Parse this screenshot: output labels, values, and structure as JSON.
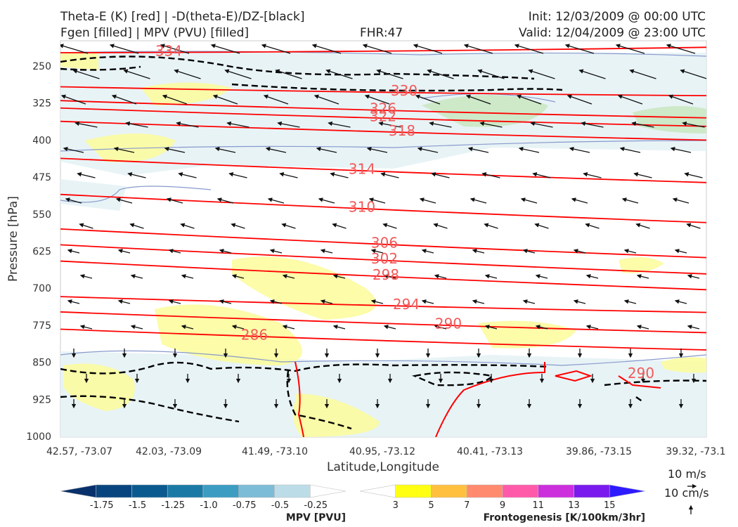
{
  "header": {
    "title_line1": "Theta-E (K) [red] | -D(theta-E)/DZ-[black]",
    "title_line2": "Fgen [filled] | MPV (PVU) [filled]",
    "fhr": "FHR:47",
    "init": "Init: 12/03/2009 @ 00:00 UTC",
    "valid": "Valid: 12/04/2009 @ 23:00 UTC"
  },
  "chart_data": {
    "type": "cross-section",
    "xlabel": "Latitude,Longitude",
    "ylabel": "Pressure [hPa]",
    "x_ticks": [
      "42.57, -73.07",
      "42.03, -73.09",
      "41.49, -73.10",
      "40.95, -73.12",
      "40.41, -73.13",
      "39.86, -73.15",
      "39.32, -73.1"
    ],
    "y_ticks": [
      "250",
      "325",
      "400",
      "475",
      "550",
      "625",
      "700",
      "775",
      "850",
      "925",
      "1000"
    ],
    "ylim": [
      1000,
      212
    ],
    "theta_e_contours": [
      {
        "label": "334",
        "pressure_left": 223,
        "pressure_right": 212
      },
      {
        "label": "330",
        "pressure_left": 292,
        "pressure_right": 310
      },
      {
        "label": "326",
        "pressure_left": 320,
        "pressure_right": 355
      },
      {
        "label": "322",
        "pressure_left": 335,
        "pressure_right": 372
      },
      {
        "label": "318",
        "pressure_left": 362,
        "pressure_right": 400
      },
      {
        "label": "314",
        "pressure_left": 437,
        "pressure_right": 486
      },
      {
        "label": "310",
        "pressure_left": 510,
        "pressure_right": 567
      },
      {
        "label": "306",
        "pressure_left": 580,
        "pressure_right": 638
      },
      {
        "label": "302",
        "pressure_left": 612,
        "pressure_right": 671
      },
      {
        "label": "298",
        "pressure_left": 645,
        "pressure_right": 703
      },
      {
        "label": "294",
        "pressure_left": 717,
        "pressure_right": 749
      },
      {
        "label": "290",
        "pressure_left": 748,
        "pressure_right": 790
      },
      {
        "label": "286",
        "pressure_left": 783,
        "pressure_right": 825
      }
    ],
    "contour_labels_extra": [
      "290"
    ],
    "mpv_colorbar": {
      "title": "MPV [PVU]",
      "ticks": [
        "-1.75",
        "-1.5",
        "-1.25",
        "-1.0",
        "-0.75",
        "-0.5",
        "-0.25"
      ],
      "colors": [
        "#08306b",
        "#08457e",
        "#0b5a8f",
        "#1a7aa5",
        "#3c9cc2",
        "#7dbcd6",
        "#bcdde8",
        "#ffffff"
      ]
    },
    "fgen_colorbar": {
      "title": "Frontogenesis [K/100km/3hr]",
      "ticks": [
        "3",
        "5",
        "7",
        "9",
        "11",
        "13",
        "15"
      ],
      "colors": [
        "#ffffff",
        "#ffff14",
        "#ffc040",
        "#ff8a6e",
        "#ff5aaa",
        "#cc30dd",
        "#7a1aee",
        "#2e1aff"
      ]
    },
    "wind_key": {
      "horizontal": "10 m/s",
      "vertical": "10 cm/s"
    },
    "colors": {
      "theta_e": "#ff0000",
      "ddz": "#000000",
      "mpv_fill": "#e4f1f5",
      "fgen_fill": "#fbfb9a",
      "isentrope_thin": "#8899cc"
    }
  }
}
